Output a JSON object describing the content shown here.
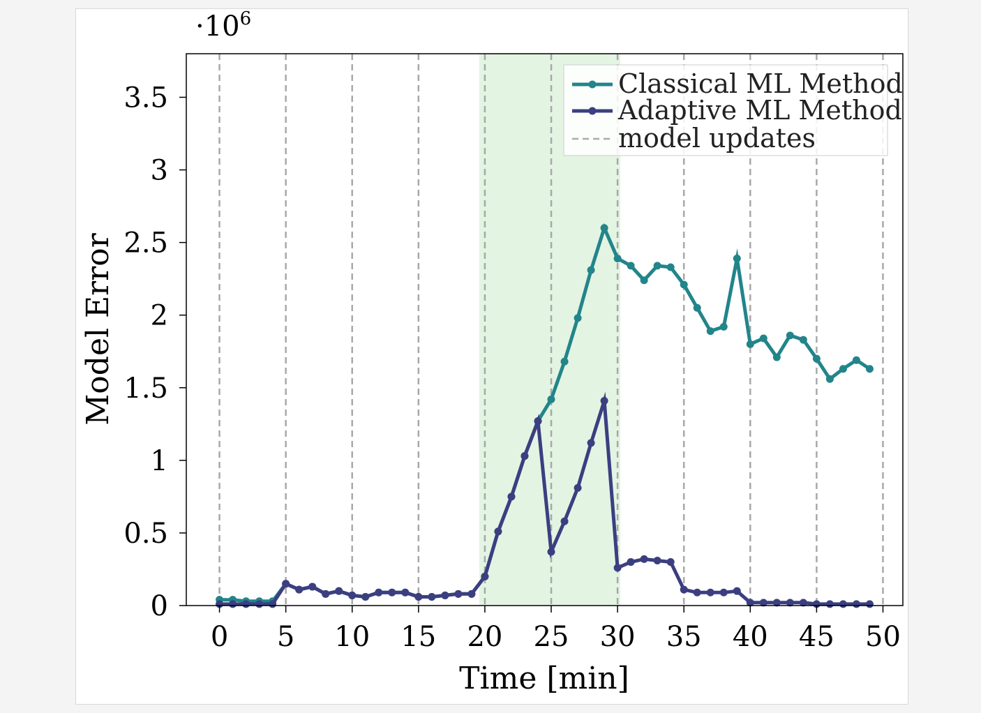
{
  "chart_data": {
    "type": "line",
    "title": "",
    "xlabel": "Time [min]",
    "ylabel": "Model Error",
    "y_multiplier": "·10",
    "y_multiplier_exp": "6",
    "xlim": [
      -2.5,
      51.5
    ],
    "ylim": [
      0,
      3.8
    ],
    "xticks": [
      0,
      5,
      10,
      15,
      20,
      25,
      30,
      35,
      40,
      45,
      50
    ],
    "yticks": [
      0,
      0.5,
      1,
      1.5,
      2,
      2.5,
      3,
      3.5
    ],
    "ytick_labels": [
      "0",
      "0.5",
      "1",
      "1.5",
      "2",
      "2.5",
      "3",
      "3.5"
    ],
    "highlight_span": [
      20,
      30
    ],
    "model_updates": [
      0,
      5,
      10,
      15,
      20,
      25,
      30,
      35,
      40,
      45,
      50
    ],
    "legend_position": "top-right",
    "series": [
      {
        "name": "Classical ML Method",
        "color": "#22858a",
        "x": [
          0,
          1,
          2,
          3,
          4,
          5,
          6,
          7,
          8,
          9,
          10,
          11,
          12,
          13,
          14,
          15,
          16,
          17,
          18,
          19,
          20,
          21,
          22,
          23,
          24,
          25,
          26,
          27,
          28,
          29,
          30,
          31,
          32,
          33,
          34,
          35,
          36,
          37,
          38,
          39,
          40,
          41,
          42,
          43,
          44,
          45,
          46,
          47,
          48,
          49
        ],
        "values": [
          0.04,
          0.04,
          0.03,
          0.03,
          0.03,
          0.15,
          0.11,
          0.13,
          0.08,
          0.1,
          0.07,
          0.06,
          0.09,
          0.09,
          0.09,
          0.06,
          0.06,
          0.07,
          0.08,
          0.08,
          0.2,
          0.51,
          0.75,
          1.03,
          1.27,
          1.42,
          1.68,
          1.98,
          2.31,
          2.6,
          2.39,
          2.34,
          2.24,
          2.34,
          2.33,
          2.21,
          2.05,
          1.89,
          1.92,
          2.39,
          1.8,
          1.84,
          1.71,
          1.86,
          1.83,
          1.7,
          1.56,
          1.63,
          1.69,
          1.63
        ]
      },
      {
        "name": "Adaptive ML Method",
        "color": "#3b3f80",
        "x": [
          0,
          1,
          2,
          3,
          4,
          5,
          6,
          7,
          8,
          9,
          10,
          11,
          12,
          13,
          14,
          15,
          16,
          17,
          18,
          19,
          20,
          21,
          22,
          23,
          24,
          25,
          26,
          27,
          28,
          29,
          30,
          31,
          32,
          33,
          34,
          35,
          36,
          37,
          38,
          39,
          40,
          41,
          42,
          43,
          44,
          45,
          46,
          47,
          48,
          49
        ],
        "values": [
          0.01,
          0.01,
          0.01,
          0.01,
          0.01,
          0.15,
          0.11,
          0.13,
          0.08,
          0.1,
          0.07,
          0.06,
          0.09,
          0.09,
          0.09,
          0.06,
          0.06,
          0.07,
          0.08,
          0.08,
          0.2,
          0.51,
          0.75,
          1.03,
          1.27,
          0.37,
          0.58,
          0.81,
          1.12,
          1.41,
          0.26,
          0.3,
          0.32,
          0.31,
          0.3,
          0.11,
          0.09,
          0.09,
          0.09,
          0.1,
          0.02,
          0.02,
          0.02,
          0.02,
          0.02,
          0.01,
          0.01,
          0.01,
          0.01,
          0.01
        ]
      }
    ],
    "legend": [
      "Classical ML Method",
      "Adaptive ML Method",
      "model updates"
    ]
  }
}
